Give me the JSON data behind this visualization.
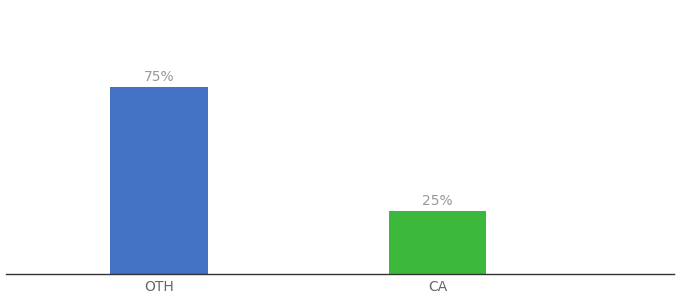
{
  "categories": [
    "OTH",
    "CA"
  ],
  "values": [
    75,
    25
  ],
  "bar_colors": [
    "#4472c4",
    "#3cb93c"
  ],
  "value_labels": [
    "75%",
    "25%"
  ],
  "background_color": "#ffffff",
  "ylim": [
    0,
    100
  ],
  "bar_width": 0.35,
  "label_fontsize": 10,
  "tick_fontsize": 10,
  "label_color": "#999999",
  "tick_color": "#666666",
  "spine_color": "#333333"
}
